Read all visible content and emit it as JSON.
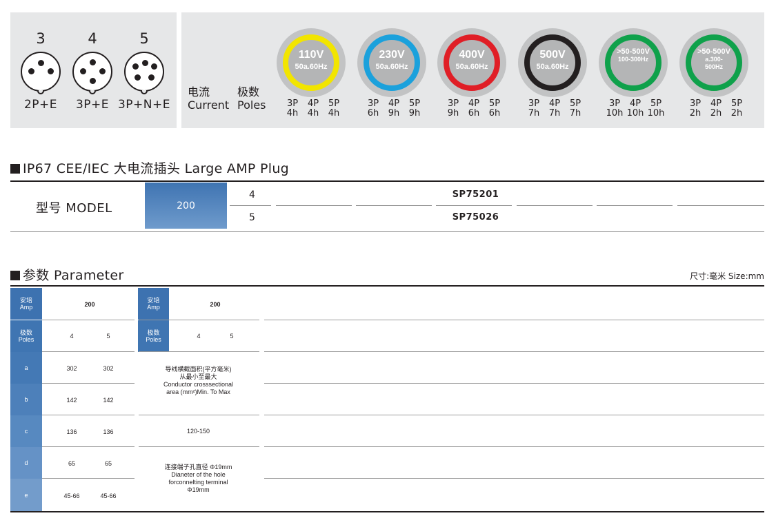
{
  "connectors": [
    {
      "number": "3",
      "label": "2P+E"
    },
    {
      "number": "4",
      "label": "3P+E"
    },
    {
      "number": "5",
      "label": "3P+N+E"
    }
  ],
  "legend": {
    "current_cn": "电流",
    "current_en": "Current",
    "poles_cn": "极数",
    "poles_en": "Poles"
  },
  "voltages": [
    {
      "voltage": "110V",
      "freq": "50a.60Hz",
      "color": "#f2e500",
      "poles": [
        "3P",
        "4P",
        "5P"
      ],
      "hours": [
        "4h",
        "4h",
        "4h"
      ]
    },
    {
      "voltage": "230V",
      "freq": "50a.60Hz",
      "color": "#1ba1dc",
      "poles": [
        "3P",
        "4P",
        "5P"
      ],
      "hours": [
        "6h",
        "9h",
        "9h"
      ]
    },
    {
      "voltage": "400V",
      "freq": "50a.60Hz",
      "color": "#e01e26",
      "poles": [
        "3P",
        "4P",
        "5P"
      ],
      "hours": [
        "9h",
        "6h",
        "6h"
      ]
    },
    {
      "voltage": "500V",
      "freq": "50a.60Hz",
      "color": "#231f20",
      "poles": [
        "3P",
        "4P",
        "5P"
      ],
      "hours": [
        "7h",
        "7h",
        "7h"
      ]
    },
    {
      "voltage": ">50-500V",
      "freq": "100-300Hz",
      "color": "#0fa14b",
      "poles": [
        "3P",
        "4P",
        "5P"
      ],
      "hours": [
        "10h",
        "10h",
        "10h"
      ]
    },
    {
      "voltage": ">50-500V",
      "freq": "a.300-500Hz",
      "color": "#0fa14b",
      "poles": [
        "3P",
        "4P",
        "5P"
      ],
      "hours": [
        "2h",
        "2h",
        "2h"
      ]
    }
  ],
  "plug_section": {
    "title": "IP67 CEE/IEC 大电流插头  Large AMP Plug",
    "model_label": "型号 MODEL",
    "amp": "200",
    "rows": [
      {
        "poles": "4",
        "model": "SP75201"
      },
      {
        "poles": "5",
        "model": "SP75026"
      }
    ]
  },
  "param_section": {
    "title": "参数 Parameter",
    "size_unit": "尺寸:毫米  Size:mm",
    "amp_label_cn": "安培",
    "amp_label_en": "Amp",
    "poles_label_cn": "极数",
    "poles_label_en": "Poles",
    "amp_value": "200",
    "poles_values": [
      "4",
      "5"
    ],
    "dims": [
      {
        "label": "a",
        "v4": "302",
        "v5": "302"
      },
      {
        "label": "b",
        "v4": "142",
        "v5": "142"
      },
      {
        "label": "c",
        "v4": "136",
        "v5": "136"
      },
      {
        "label": "d",
        "v4": "65",
        "v5": "65"
      },
      {
        "label": "e",
        "v4": "45-66",
        "v5": "45-66"
      }
    ],
    "conductor_cn": "导线横截面积(平方毫米)",
    "conductor_cn2": "从最小至最大",
    "conductor_en1": "Conductor crosssectional",
    "conductor_en2": "area (mm²)Min. To Max",
    "conductor_value": "120-150",
    "terminal_cn": "连接端子孔直径 Φ19mm",
    "terminal_en1": "Dianeter of the hole",
    "terminal_en2": "forconnelting terminal",
    "terminal_en3": "Φ19mm"
  }
}
